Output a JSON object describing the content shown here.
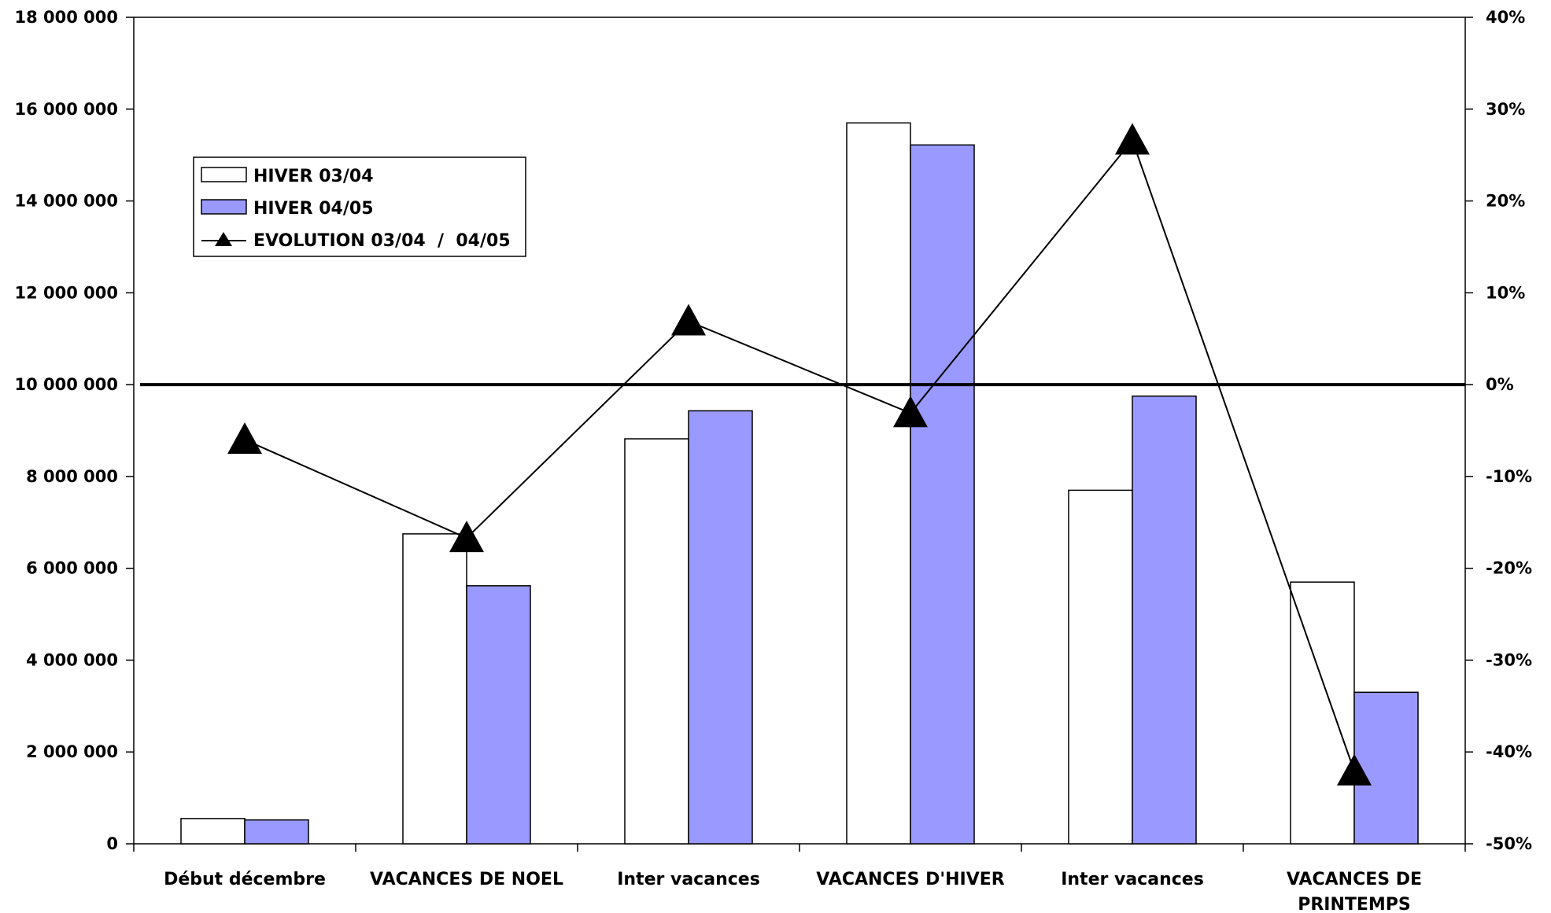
{
  "chart_data": {
    "type": "bar",
    "categories": [
      "Début décembre",
      "VACANCES DE NOEL",
      "Inter vacances",
      "VACANCES D'HIVER",
      "Inter vacances",
      "VACANCES DE PRINTEMPS"
    ],
    "category_lines": [
      [
        "Début décembre"
      ],
      [
        "VACANCES DE NOEL"
      ],
      [
        "Inter vacances"
      ],
      [
        "VACANCES D'HIVER"
      ],
      [
        "Inter vacances"
      ],
      [
        "VACANCES DE",
        "PRINTEMPS"
      ]
    ],
    "series": [
      {
        "name": "HIVER 03/04",
        "type": "bar",
        "axis": "left",
        "color": "#ffffff",
        "values": [
          550000,
          6750000,
          8820000,
          15700000,
          7700000,
          5700000
        ]
      },
      {
        "name": "HIVER 04/05",
        "type": "bar",
        "axis": "left",
        "color": "#9999ff",
        "values": [
          520000,
          5620000,
          9430000,
          15220000,
          9750000,
          3300000
        ]
      },
      {
        "name": "EVOLUTION 03/04  /  04/05",
        "type": "line",
        "axis": "right",
        "marker": "triangle",
        "color": "#000000",
        "values": [
          -6.0,
          -16.7,
          6.9,
          -3.1,
          26.6,
          -42.1
        ]
      }
    ],
    "y_left": {
      "min": 0,
      "max": 18000000,
      "step": 2000000,
      "tick_labels": [
        "0",
        "2 000 000",
        "4 000 000",
        "6 000 000",
        "8 000 000",
        "10 000 000",
        "12 000 000",
        "14 000 000",
        "16 000 000",
        "18 000 000"
      ]
    },
    "y_right": {
      "min": -50,
      "max": 40,
      "step": 10,
      "unit": "%",
      "tick_labels": [
        "-50%",
        "-40%",
        "-30%",
        "-20%",
        "-10%",
        "0%",
        "10%",
        "20%",
        "30%",
        "40%"
      ]
    },
    "reference_line": {
      "axis": "right",
      "value": 0
    },
    "grid": false,
    "legend": {
      "position": "top-left",
      "entries": [
        "HIVER 03/04",
        "HIVER 04/05",
        "EVOLUTION 03/04  /  04/05"
      ]
    }
  }
}
